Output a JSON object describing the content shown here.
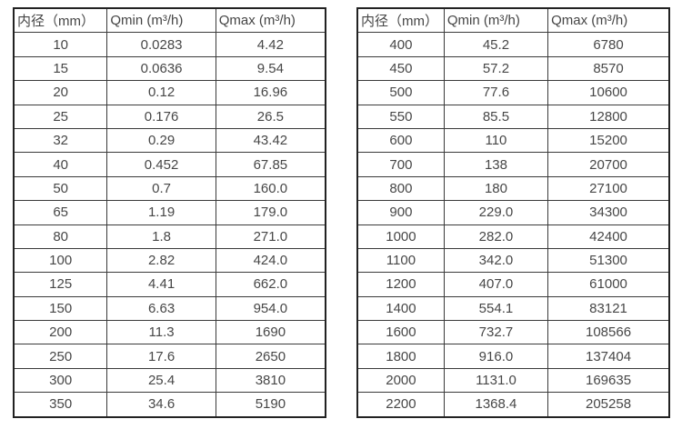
{
  "colors": {
    "background": "#ffffff",
    "text": "#474747",
    "border_outer": "#222222",
    "border_inner": "#3a3a3a"
  },
  "tables": [
    {
      "headers": [
        "内径（mm）",
        "Qmin (m³/h)",
        "Qmax (m³/h)"
      ],
      "rows": [
        [
          "10",
          "0.0283",
          "4.42"
        ],
        [
          "15",
          "0.0636",
          "9.54"
        ],
        [
          "20",
          "0.12",
          "16.96"
        ],
        [
          "25",
          "0.176",
          "26.5"
        ],
        [
          "32",
          "0.29",
          "43.42"
        ],
        [
          "40",
          "0.452",
          "67.85"
        ],
        [
          "50",
          "0.7",
          "160.0"
        ],
        [
          "65",
          "1.19",
          "179.0"
        ],
        [
          "80",
          "1.8",
          "271.0"
        ],
        [
          "100",
          "2.82",
          "424.0"
        ],
        [
          "125",
          "4.41",
          "662.0"
        ],
        [
          "150",
          "6.63",
          "954.0"
        ],
        [
          "200",
          "11.3",
          "1690"
        ],
        [
          "250",
          "17.6",
          "2650"
        ],
        [
          "300",
          "25.4",
          "3810"
        ],
        [
          "350",
          "34.6",
          "5190"
        ]
      ]
    },
    {
      "headers": [
        "内径（mm）",
        "Qmin (m³/h)",
        "Qmax (m³/h)"
      ],
      "rows": [
        [
          "400",
          "45.2",
          "6780"
        ],
        [
          "450",
          "57.2",
          "8570"
        ],
        [
          "500",
          "77.6",
          "10600"
        ],
        [
          "550",
          "85.5",
          "12800"
        ],
        [
          "600",
          "110",
          "15200"
        ],
        [
          "700",
          "138",
          "20700"
        ],
        [
          "800",
          "180",
          "27100"
        ],
        [
          "900",
          "229.0",
          "34300"
        ],
        [
          "1000",
          "282.0",
          "42400"
        ],
        [
          "1100",
          "342.0",
          "51300"
        ],
        [
          "1200",
          "407.0",
          "61000"
        ],
        [
          "1400",
          "554.1",
          "83121"
        ],
        [
          "1600",
          "732.7",
          "108566"
        ],
        [
          "1800",
          "916.0",
          "137404"
        ],
        [
          "2000",
          "1131.0",
          "169635"
        ],
        [
          "2200",
          "1368.4",
          "205258"
        ]
      ]
    }
  ]
}
